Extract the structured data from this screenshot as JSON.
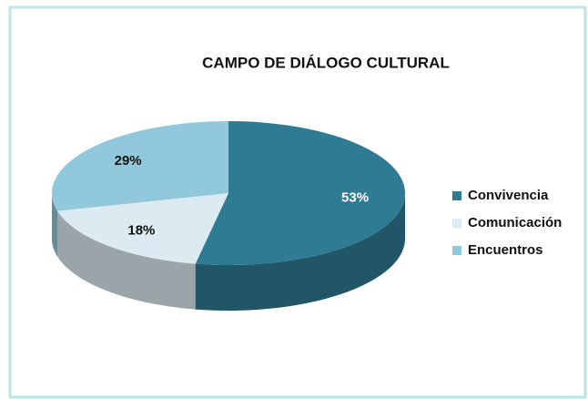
{
  "chart_data": {
    "type": "pie",
    "title": "CAMPO DE DIÁLOGO CULTURAL",
    "categories": [
      "Convivencia",
      "Comunicación",
      "Encuentros"
    ],
    "values": [
      53,
      18,
      29
    ],
    "value_labels": [
      "53%",
      "18%",
      "29%"
    ],
    "colors": [
      "#2f7b93",
      "#dceaf1",
      "#92c8dc"
    ],
    "legend": "right"
  }
}
